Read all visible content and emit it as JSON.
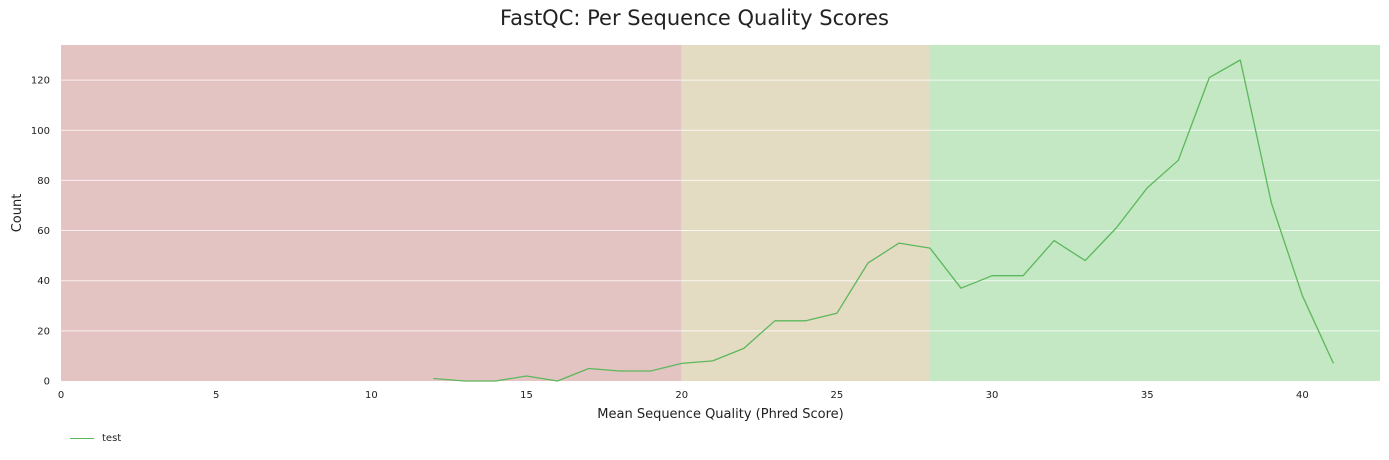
{
  "chart_data": {
    "type": "line",
    "title": "FastQC: Per Sequence Quality Scores",
    "xlabel": "Mean Sequence Quality (Phred Score)",
    "ylabel": "Count",
    "xlim": [
      0,
      42.5
    ],
    "ylim": [
      0,
      134
    ],
    "x_ticks": [
      0,
      5,
      10,
      15,
      20,
      25,
      30,
      35,
      40
    ],
    "y_ticks": [
      0,
      20,
      40,
      60,
      80,
      100,
      120
    ],
    "grid": true,
    "legend_position": "bottom-left",
    "bands": [
      {
        "from": 0,
        "to": 20,
        "color": "#e4c3c3"
      },
      {
        "from": 20,
        "to": 28,
        "color": "#e4dbc3"
      },
      {
        "from": 28,
        "to": 42.5,
        "color": "#c4e7c4"
      }
    ],
    "series": [
      {
        "name": "test",
        "color": "#5cb85c",
        "x": [
          12,
          13,
          14,
          15,
          16,
          17,
          18,
          19,
          20,
          21,
          22,
          23,
          24,
          25,
          26,
          27,
          28,
          29,
          30,
          31,
          32,
          33,
          34,
          35,
          36,
          37,
          38,
          39,
          40,
          41
        ],
        "values": [
          1,
          0,
          0,
          2,
          0,
          5,
          4,
          4,
          7,
          8,
          13,
          24,
          24,
          27,
          47,
          55,
          53,
          37,
          42,
          42,
          56,
          48,
          61,
          77,
          88,
          121,
          128,
          71,
          34,
          7
        ]
      }
    ]
  }
}
